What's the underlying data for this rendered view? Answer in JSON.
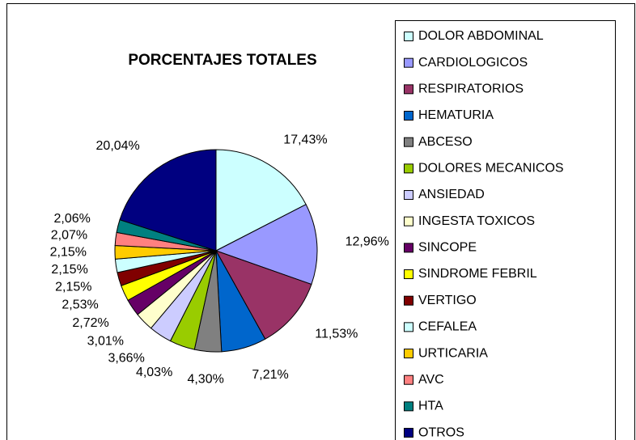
{
  "chart_data": {
    "type": "pie",
    "title": "PORCENTAJES TOTALES",
    "categories": [
      "DOLOR ABDOMINAL",
      "CARDIOLOGICOS",
      "RESPIRATORIOS",
      "HEMATURIA",
      "ABCESO",
      "DOLORES MECANICOS",
      "ANSIEDAD",
      "INGESTA TOXICOS",
      "SINCOPE",
      "SINDROME FEBRIL",
      "VERTIGO",
      "CEFALEA",
      "URTICARIA",
      "AVC",
      "HTA",
      "OTROS"
    ],
    "values": [
      17.43,
      12.96,
      11.53,
      7.21,
      4.3,
      4.03,
      3.66,
      3.01,
      2.72,
      2.53,
      2.15,
      2.15,
      2.15,
      2.07,
      2.06,
      20.04
    ],
    "value_labels": [
      "17,43%",
      "12,96%",
      "11,53%",
      "7,21%",
      "4,30%",
      "4,03%",
      "3,66%",
      "3,01%",
      "2,72%",
      "2,53%",
      "2,15%",
      "2,15%",
      "2,15%",
      "2,07%",
      "2,06%",
      "20,04%"
    ],
    "colors": [
      "#ccffff",
      "#9999ff",
      "#993366",
      "#0066cc",
      "#808080",
      "#99cc00",
      "#ccccff",
      "#ffffcc",
      "#660066",
      "#ffff00",
      "#800000",
      "#ccffff",
      "#ffcc00",
      "#ff8080",
      "#008080",
      "#000080"
    ],
    "legend": "right"
  }
}
